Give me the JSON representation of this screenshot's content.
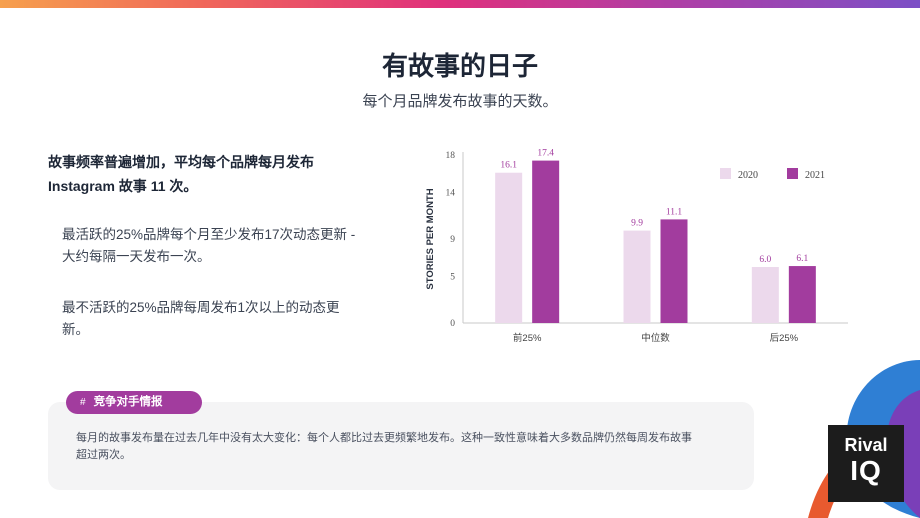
{
  "header": {
    "title": "有故事的日子",
    "subtitle": "每个月品牌发布故事的天数。"
  },
  "body": {
    "lead": "故事频率普遍增加，平均每个品牌每月发布 Instagram 故事 11 次。",
    "points": [
      "最活跃的25%品牌每个月至少发布17次动态更新 - 大约每隔一天发布一次。",
      "最不活跃的25%品牌每周发布1次以上的动态更新。"
    ]
  },
  "card": {
    "tag_icon": "#",
    "tag": "竞争对手情报",
    "text": "每月的故事发布量在过去几年中没有太大变化：每个人都比过去更频繁地发布。这种一致性意味着大多数品牌仍然每周发布故事超过两次。"
  },
  "logo": {
    "line1": "Rival",
    "line2": "IQ"
  },
  "colors": {
    "top_gradient": [
      "#f6a04d",
      "#e0307c",
      "#7c4fc6"
    ],
    "series_2020": "#ecd9ec",
    "series_2021": "#a23c9e",
    "tag_bg": "#a23c9e"
  },
  "chart_data": {
    "type": "bar",
    "categories": [
      "前25%",
      "中位数",
      "后25%"
    ],
    "series": [
      {
        "name": "2020",
        "values": [
          16.1,
          9.9,
          6.0
        ],
        "color": "#ecd9ec"
      },
      {
        "name": "2021",
        "values": [
          17.4,
          11.1,
          6.1
        ],
        "color": "#a23c9e"
      }
    ],
    "ylabel": "STORIES PER MONTH",
    "ylim": [
      0,
      18
    ],
    "yticks": [
      0,
      5,
      9,
      14,
      18
    ],
    "data_labels": [
      "16.1",
      "17.4",
      "9.9",
      "11.1",
      "6.0",
      "6.1"
    ],
    "legend_position": "top-right",
    "grid": false
  }
}
